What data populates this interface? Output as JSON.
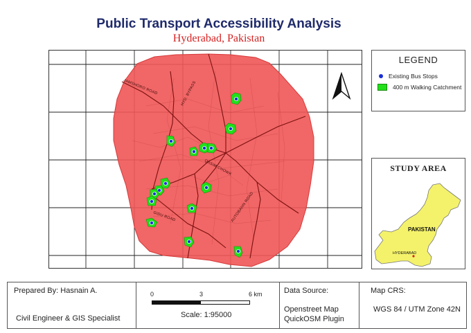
{
  "title": "Public Transport Accessibility Analysis",
  "subtitle": "Hyderabad, Pakistan",
  "map": {
    "roads": [
      "JAMSHORO ROAD",
      "HYD. BYPASS",
      "QASIM CHOWK",
      "GIDU ROAD",
      "AUTOBAHN ROAD"
    ],
    "bus_stop_count": 16,
    "colors": {
      "coverage": "#f05555",
      "catchment": "#22e01a",
      "stop": "#1a2fd6"
    }
  },
  "legend": {
    "title": "LEGEND",
    "items": [
      "Existing Bus Stops",
      "400 m Walking Catchment"
    ]
  },
  "study_area": {
    "title": "STUDY AREA",
    "country": "PAKISTAN",
    "city": "HYDERABAD"
  },
  "footer": {
    "prepared_by": "Prepared By: Hasnain A.",
    "role": "Civil Engineer & GIS Specialist",
    "scale_ticks": [
      "0",
      "3",
      "6 km"
    ],
    "scale_text": "Scale: 1:95000",
    "data_source_label": "Data Source:",
    "data_source_1": "Openstreet Map",
    "data_source_2": "QuickOSM Plugin",
    "crs_label": "Map CRS:",
    "crs_value": "WGS 84 / UTM Zone 42N"
  }
}
